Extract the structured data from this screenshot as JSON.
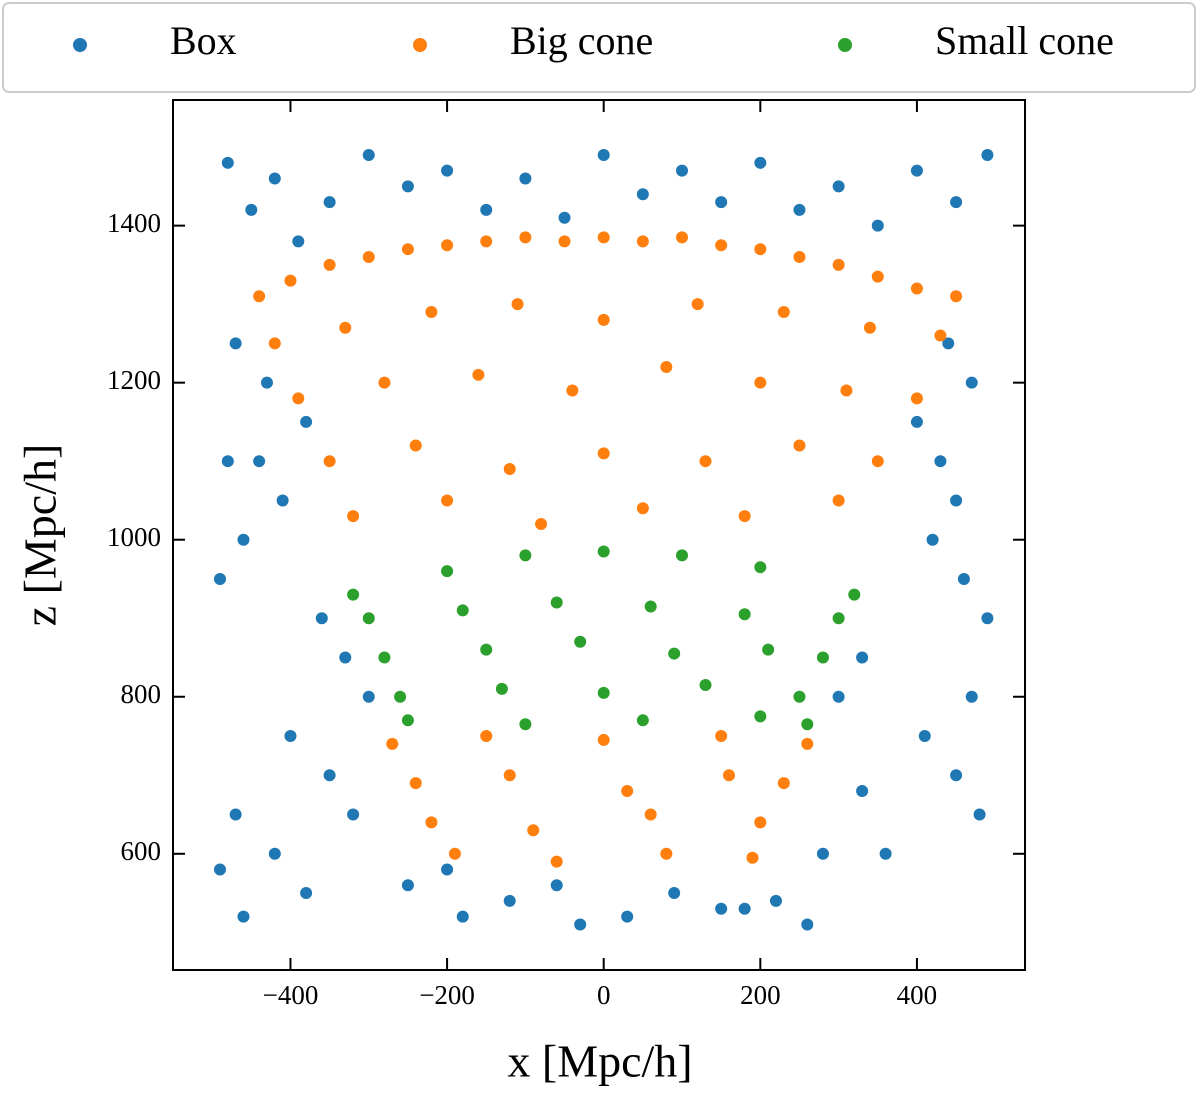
{
  "chart_data": {
    "type": "scatter",
    "xlabel": "x [Mpc/h]",
    "ylabel": "z [Mpc/h]",
    "xlim": [
      -550,
      538
    ],
    "ylim": [
      452,
      1560
    ],
    "xticks": [
      {
        "value": -400,
        "label": "−400"
      },
      {
        "value": -200,
        "label": "−200"
      },
      0,
      200,
      400
    ],
    "yticks": [
      600,
      800,
      1000,
      1200,
      1400
    ],
    "legend": "top",
    "series": [
      {
        "name": "Box",
        "color": "#1f77b4",
        "x": [
          -480,
          -450,
          -420,
          -390,
          -350,
          -300,
          -250,
          -200,
          -150,
          -100,
          -50,
          0,
          50,
          100,
          150,
          200,
          250,
          300,
          350,
          400,
          450,
          490,
          -470,
          -430,
          -380,
          -440,
          -410,
          -460,
          -490,
          -360,
          -330,
          -300,
          -400,
          -350,
          -470,
          -420,
          -380,
          -460,
          -490,
          440,
          470,
          400,
          430,
          450,
          420,
          460,
          490,
          330,
          300,
          410,
          450,
          480,
          360,
          -250,
          -120,
          30,
          180,
          260,
          -180,
          -60,
          90,
          220,
          470,
          -480,
          -200,
          150,
          -320,
          330,
          -30,
          280
        ],
        "y": [
          1480,
          1420,
          1460,
          1380,
          1430,
          1490,
          1450,
          1470,
          1420,
          1460,
          1410,
          1490,
          1440,
          1470,
          1430,
          1480,
          1420,
          1450,
          1400,
          1470,
          1430,
          1490,
          1250,
          1200,
          1150,
          1100,
          1050,
          1000,
          950,
          900,
          850,
          800,
          750,
          700,
          650,
          600,
          550,
          520,
          580,
          1250,
          1200,
          1150,
          1100,
          1050,
          1000,
          950,
          900,
          850,
          800,
          750,
          700,
          650,
          600,
          560,
          540,
          520,
          530,
          510,
          520,
          560,
          550,
          540,
          800,
          1100,
          580,
          530,
          650,
          680,
          510,
          600
        ]
      },
      {
        "name": "Big cone",
        "color": "#ff7f0e",
        "x": [
          -440,
          -400,
          -350,
          -300,
          -250,
          -200,
          -150,
          -100,
          -50,
          0,
          50,
          100,
          150,
          200,
          250,
          300,
          350,
          400,
          450,
          -420,
          -330,
          -220,
          -110,
          0,
          120,
          230,
          340,
          430,
          -390,
          -280,
          -160,
          -40,
          80,
          200,
          310,
          400,
          -350,
          -240,
          -120,
          0,
          130,
          250,
          350,
          -320,
          -200,
          -80,
          50,
          180,
          300,
          -270,
          -150,
          0,
          150,
          260,
          -240,
          -120,
          30,
          160,
          230,
          -220,
          -90,
          60,
          200,
          -190,
          -60,
          80,
          190
        ],
        "y": [
          1310,
          1330,
          1350,
          1360,
          1370,
          1375,
          1380,
          1385,
          1380,
          1385,
          1380,
          1385,
          1375,
          1370,
          1360,
          1350,
          1335,
          1320,
          1310,
          1250,
          1270,
          1290,
          1300,
          1280,
          1300,
          1290,
          1270,
          1260,
          1180,
          1200,
          1210,
          1190,
          1220,
          1200,
          1190,
          1180,
          1100,
          1120,
          1090,
          1110,
          1100,
          1120,
          1100,
          1030,
          1050,
          1020,
          1040,
          1030,
          1050,
          740,
          750,
          745,
          750,
          740,
          690,
          700,
          680,
          700,
          690,
          640,
          630,
          650,
          640,
          600,
          590,
          600,
          595
        ]
      },
      {
        "name": "Small cone",
        "color": "#2ca02c",
        "x": [
          -320,
          -200,
          -100,
          0,
          100,
          200,
          320,
          -300,
          -180,
          -60,
          60,
          180,
          300,
          -280,
          -150,
          -30,
          90,
          210,
          280,
          -260,
          -130,
          0,
          130,
          250,
          -250,
          -100,
          50,
          200,
          260
        ],
        "y": [
          930,
          960,
          980,
          985,
          980,
          965,
          930,
          900,
          910,
          920,
          915,
          905,
          900,
          850,
          860,
          870,
          855,
          860,
          850,
          800,
          810,
          805,
          815,
          800,
          770,
          765,
          770,
          775,
          765
        ]
      }
    ]
  }
}
